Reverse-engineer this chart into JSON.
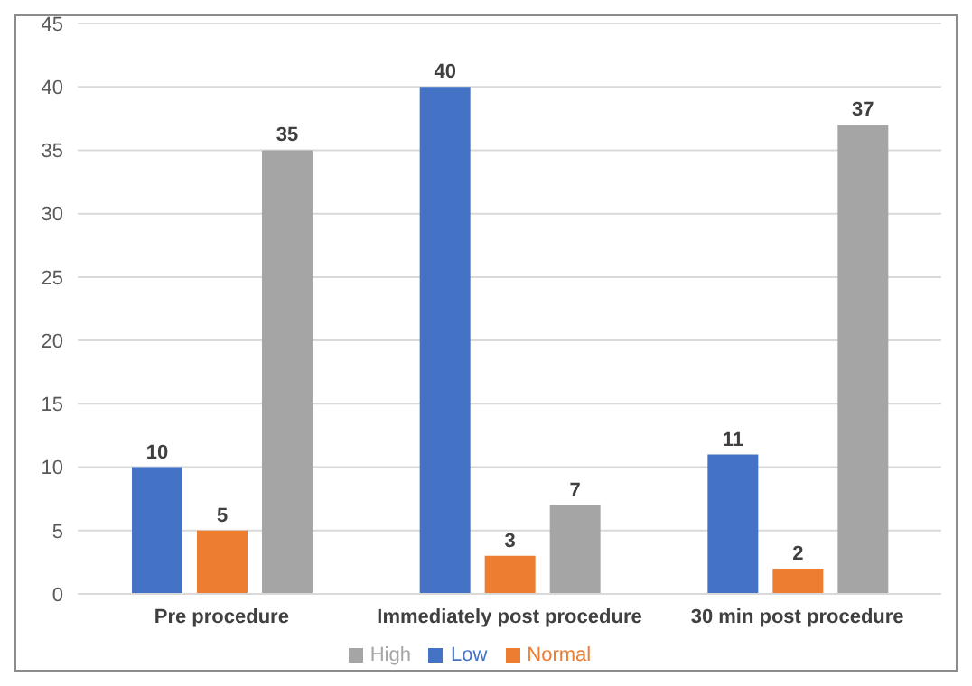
{
  "chart_data": {
    "type": "bar",
    "categories": [
      "Pre procedure",
      "Immediately post procedure",
      "30 min post procedure"
    ],
    "series": [
      {
        "name": "Low",
        "color": "#4472c4",
        "values": [
          10,
          40,
          11
        ]
      },
      {
        "name": "Normal",
        "color": "#ed7d31",
        "values": [
          5,
          3,
          2
        ]
      },
      {
        "name": "High",
        "color": "#a5a5a5",
        "values": [
          35,
          7,
          37
        ]
      }
    ],
    "ylim": [
      0,
      45
    ],
    "yticks": [
      0,
      5,
      10,
      15,
      20,
      25,
      30,
      35,
      40,
      45
    ],
    "grid": "y",
    "legend": "bottom",
    "data_labels": true
  }
}
